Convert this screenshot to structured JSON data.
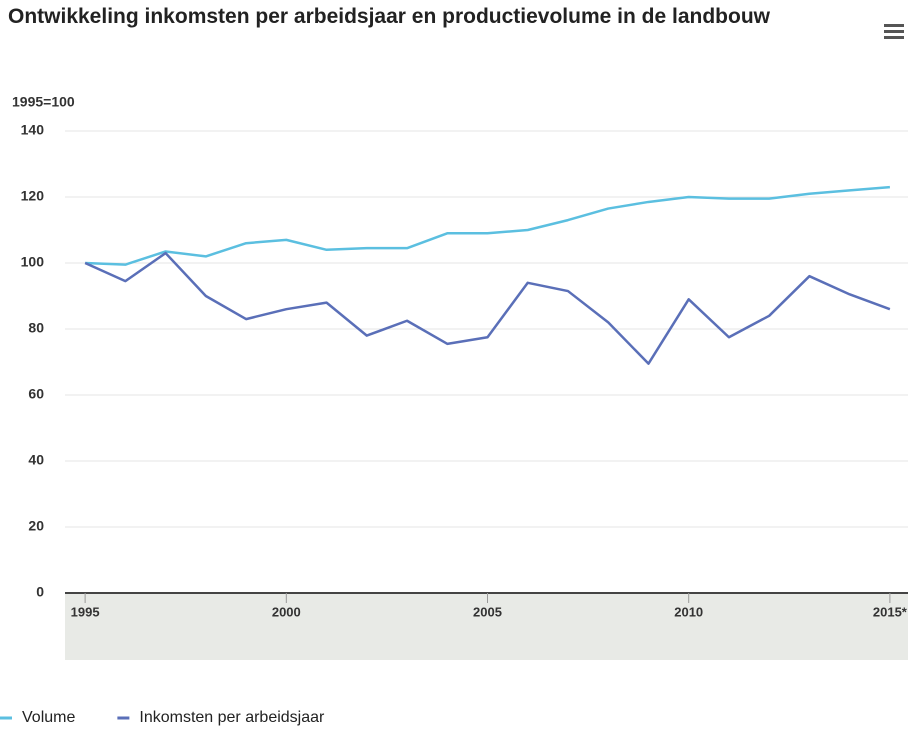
{
  "chart_data": {
    "type": "line",
    "title": "Ontwikkeling inkomsten per arbeidsjaar en productievolume in de landbouw",
    "y_label": "1995=100",
    "x": [
      1995,
      1996,
      1997,
      1998,
      1999,
      2000,
      2001,
      2002,
      2003,
      2004,
      2005,
      2006,
      2007,
      2008,
      2009,
      2010,
      2011,
      2012,
      2013,
      2014,
      2015
    ],
    "series": [
      {
        "name": "Volume",
        "color": "#5bbfe0",
        "values": [
          100,
          99.5,
          103.5,
          102,
          106,
          107,
          104,
          104.5,
          104.5,
          109,
          109,
          110,
          113,
          116.5,
          118.5,
          120,
          119.5,
          119.5,
          121,
          122,
          123
        ]
      },
      {
        "name": "Inkomsten per arbeidsjaar",
        "color": "#5a6fb8",
        "values": [
          100,
          94.5,
          103,
          90,
          83,
          86,
          88,
          78,
          82.5,
          75.5,
          77.5,
          94,
          91.5,
          82,
          69.5,
          89,
          77.5,
          84,
          96,
          90.5,
          86
        ]
      }
    ],
    "xlim": [
      1994.5,
      2015.45
    ],
    "xticks": [
      1995,
      2000,
      2005,
      2010,
      {
        "value": 2015,
        "label": "2015*"
      }
    ],
    "ylim": [
      0,
      140
    ],
    "yticks": [
      0,
      20,
      40,
      60,
      80,
      100,
      120,
      140
    ],
    "grid": true,
    "legend": "bottom-left"
  }
}
